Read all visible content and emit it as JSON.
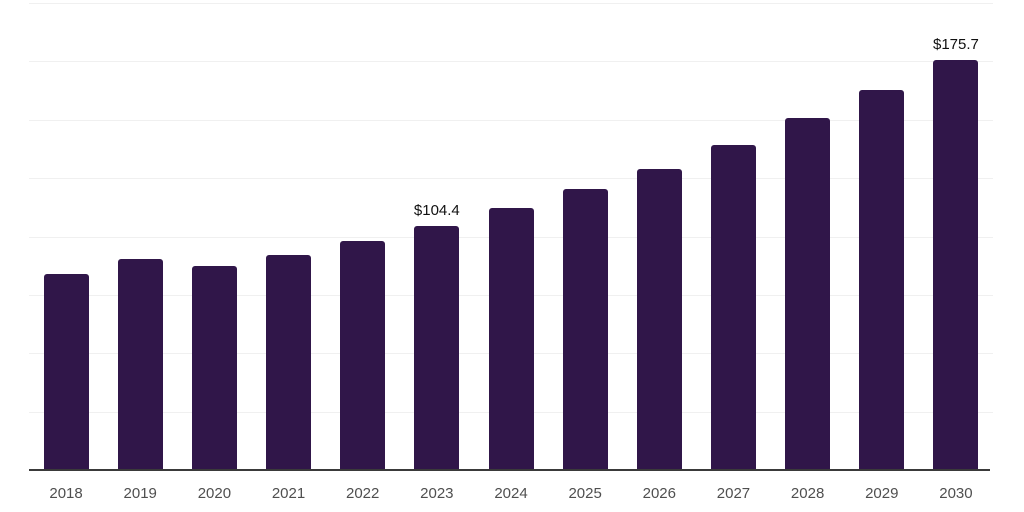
{
  "chart_data": {
    "type": "bar",
    "title": "",
    "xlabel": "",
    "ylabel": "",
    "categories": [
      "2018",
      "2019",
      "2020",
      "2021",
      "2022",
      "2023",
      "2024",
      "2025",
      "2026",
      "2027",
      "2028",
      "2029",
      "2030"
    ],
    "values": [
      84.1,
      90.3,
      87.2,
      92.0,
      98.2,
      104.4,
      112.0,
      120.3,
      128.9,
      139.2,
      150.9,
      162.9,
      175.7
    ],
    "data_labels": {
      "2023": "$104.4",
      "2030": "$175.7"
    },
    "currency_prefix": "$",
    "ylim": [
      0,
      200
    ],
    "grid_step": 25,
    "grid": true,
    "legend": false,
    "bar_color": "#301649",
    "axis_color": "#3a3a3a",
    "gridline_color": "#f0f0f0",
    "x_label_color": "#4f4f4f",
    "value_label_color": "#111111",
    "background_color": "#ffffff"
  }
}
